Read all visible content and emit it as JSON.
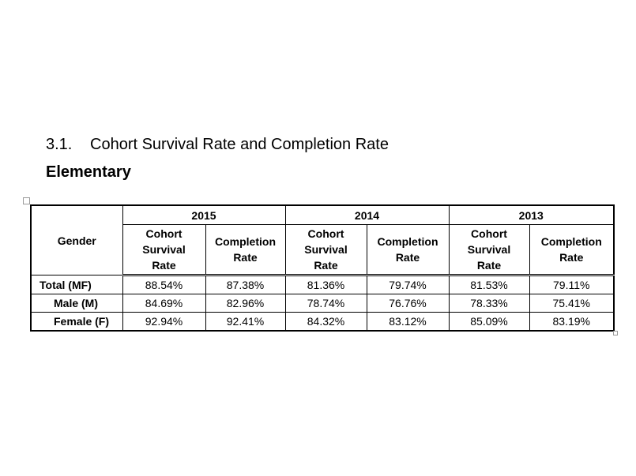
{
  "heading": {
    "number": "3.1.",
    "title": "Cohort Survival Rate and Completion Rate"
  },
  "subheading": "Elementary",
  "table": {
    "gender_header": "Gender",
    "years": [
      {
        "year": "2015",
        "columns": [
          "Cohort Survival Rate",
          "Completion Rate"
        ]
      },
      {
        "year": "2014",
        "columns": [
          "Cohort Survival Rate",
          "Completion Rate"
        ]
      },
      {
        "year": "2013",
        "columns": [
          "Cohort Survival Rate",
          "Completion Rate"
        ]
      }
    ],
    "rows": [
      [
        "Total (MF)",
        "88.54%",
        "87.38%",
        "81.36%",
        "79.74%",
        "81.53%",
        "79.11%"
      ],
      [
        "Male (M)",
        "84.69%",
        "82.96%",
        "78.74%",
        "76.76%",
        "78.33%",
        "75.41%"
      ],
      [
        "Female (F)",
        "92.94%",
        "92.41%",
        "84.32%",
        "83.12%",
        "85.09%",
        "83.19%"
      ]
    ]
  }
}
